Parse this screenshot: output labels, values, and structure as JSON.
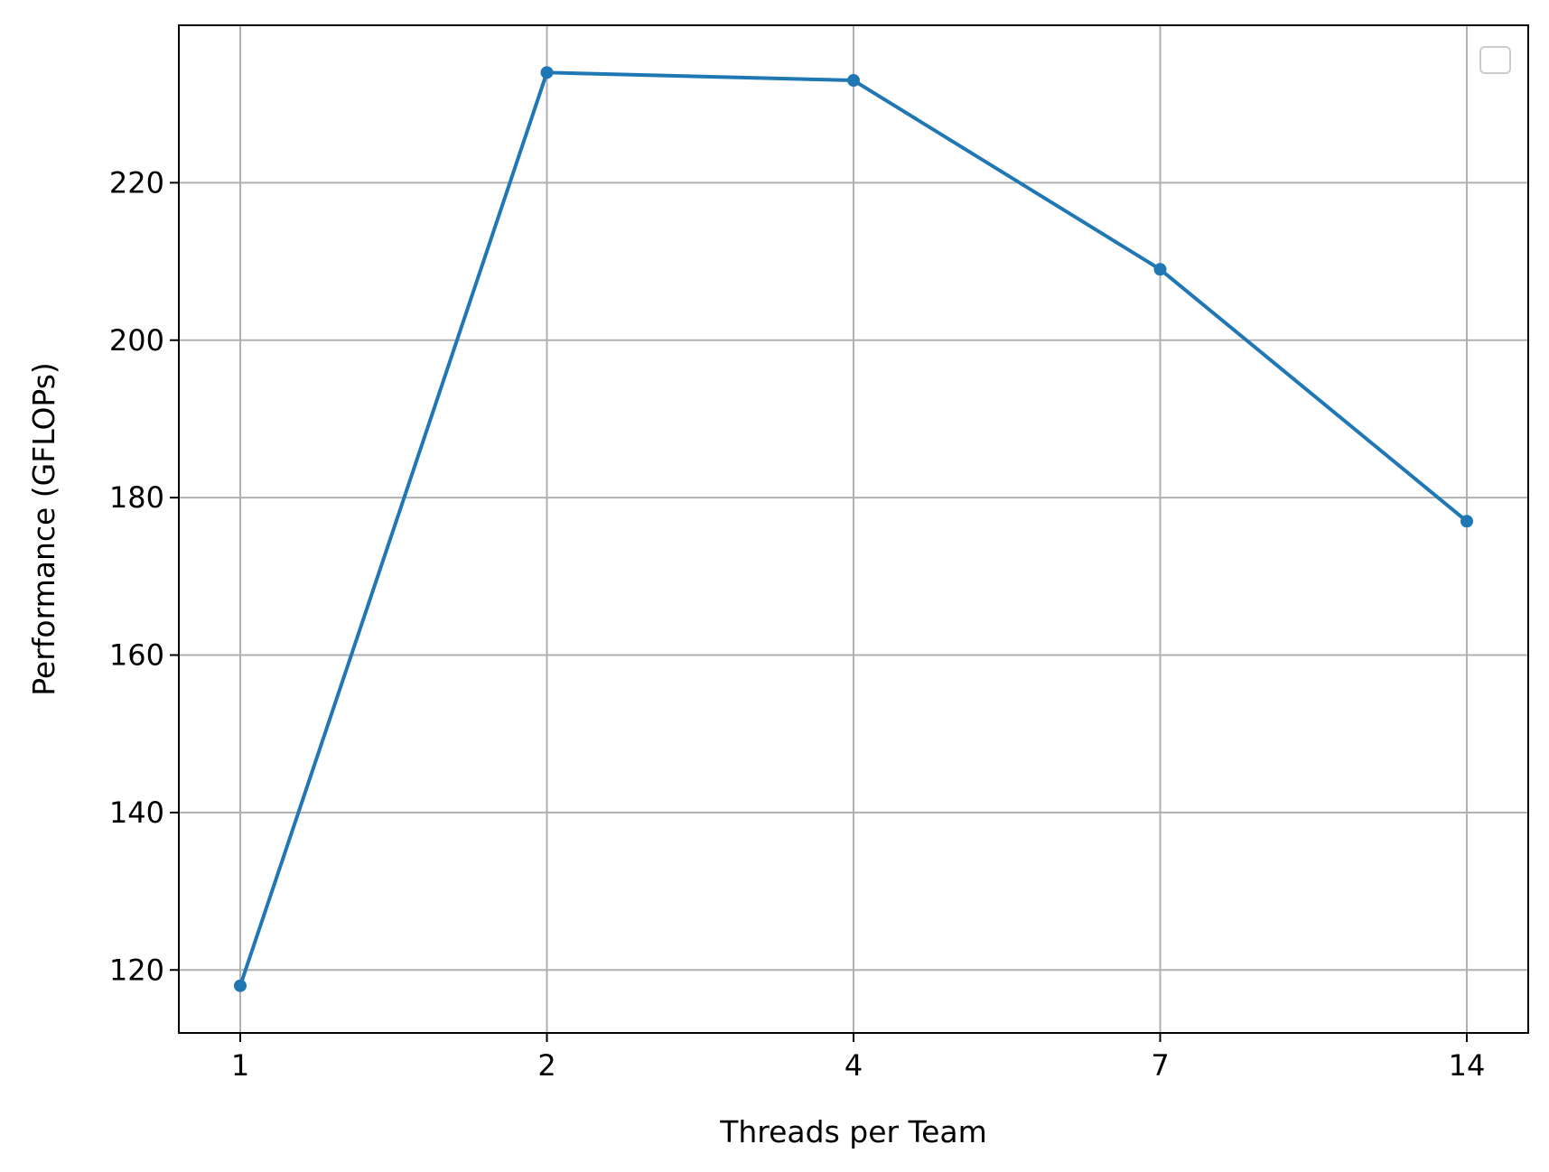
{
  "chart_data": {
    "type": "line",
    "xlabel": "Threads per Team",
    "ylabel": "Performance (GFLOPs)",
    "categories": [
      "1",
      "2",
      "4",
      "7",
      "14"
    ],
    "series": [
      {
        "values": [
          118,
          234,
          233,
          209,
          177
        ],
        "color": "#1f77b4",
        "marker": "circle"
      }
    ],
    "ylim": [
      112,
      240
    ],
    "yticks": [
      120,
      140,
      160,
      180,
      200,
      220
    ],
    "grid": true,
    "legend": {
      "position": "top-right",
      "entries": []
    }
  },
  "colors": {
    "axis": "#000000",
    "grid": "#b0b0b0",
    "legend_border": "#cccccc"
  }
}
